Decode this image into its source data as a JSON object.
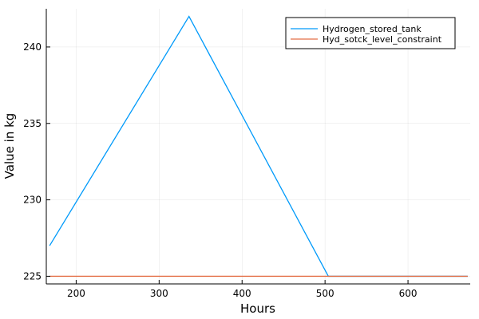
{
  "chart_data": {
    "type": "line",
    "title": "",
    "xlabel": "Hours",
    "ylabel": "Value in kg",
    "xlim": [
      164,
      675
    ],
    "ylim": [
      224.5,
      242.5
    ],
    "xticks": [
      200,
      300,
      400,
      500,
      600
    ],
    "yticks": [
      225,
      230,
      235,
      240
    ],
    "grid": true,
    "legend_position": "top-right",
    "series": [
      {
        "name": "Hydrogen_stored_tank",
        "color": "#009AFA",
        "x": [
          168,
          336,
          504,
          672
        ],
        "y": [
          227,
          242,
          225,
          225
        ]
      },
      {
        "name": "Hyd_sotck_level_constraint",
        "color": "#E36F47",
        "x": [
          168,
          672
        ],
        "y": [
          225,
          225
        ]
      }
    ]
  }
}
